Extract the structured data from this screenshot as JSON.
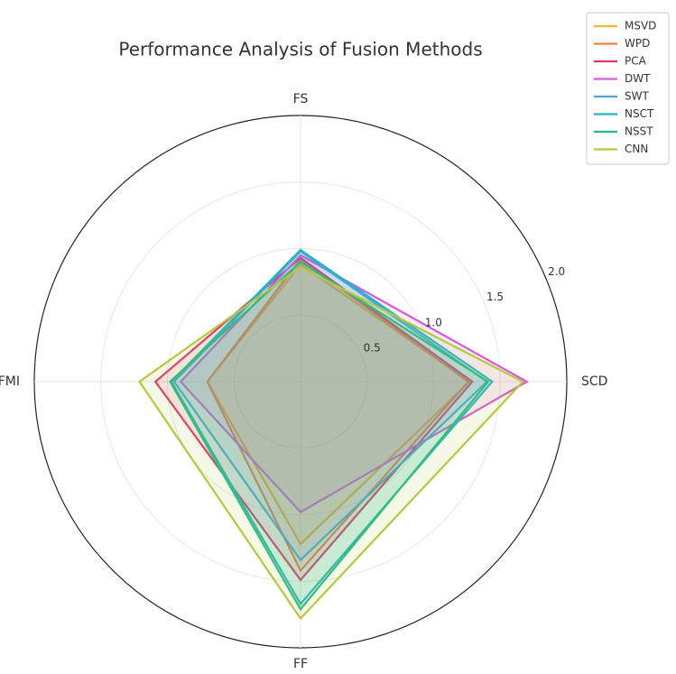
{
  "chart_data": {
    "type": "radar",
    "title": "Performance Analysis of Fusion Methods",
    "categories": [
      "FS",
      "SCD",
      "FF",
      "FMI"
    ],
    "series": [
      {
        "name": "MSVD",
        "color": "#f7b42c",
        "values": [
          0.88,
          1.27,
          1.22,
          0.7
        ]
      },
      {
        "name": "WPD",
        "color": "#f57f3c",
        "values": [
          0.92,
          1.26,
          1.42,
          0.7
        ]
      },
      {
        "name": "PCA",
        "color": "#e2336c",
        "values": [
          0.93,
          1.29,
          1.49,
          1.09
        ]
      },
      {
        "name": "DWT",
        "color": "#d659d6",
        "values": [
          0.95,
          1.7,
          0.98,
          0.9
        ]
      },
      {
        "name": "SWT",
        "color": "#4aa5dc",
        "values": [
          0.98,
          1.4,
          1.34,
          0.95
        ]
      },
      {
        "name": "NSCT",
        "color": "#20b6c8",
        "values": [
          0.99,
          1.44,
          1.67,
          0.97
        ]
      },
      {
        "name": "NSST",
        "color": "#1fbf80",
        "values": [
          0.9,
          1.41,
          1.71,
          0.98
        ]
      },
      {
        "name": "CNN",
        "color": "#b7c83c",
        "values": [
          0.86,
          1.67,
          1.78,
          1.21
        ]
      }
    ],
    "rlim": [
      0,
      2
    ],
    "rticks": [
      0.5,
      {
        "value": 1,
        "label": "1.0"
      },
      1.5,
      {
        "value": 2,
        "label": "2.0"
      }
    ],
    "grid": true,
    "legend": "upper right"
  }
}
